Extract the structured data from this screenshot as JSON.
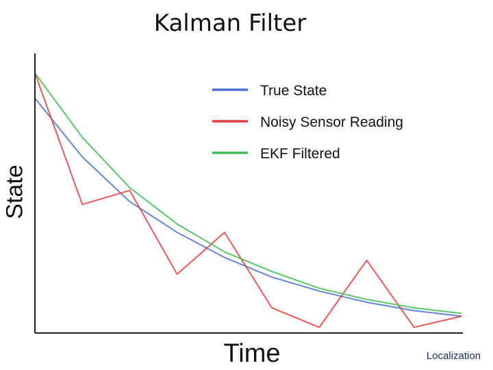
{
  "title": "Kalman Filter",
  "footer": "Localization",
  "chart_data": {
    "type": "line",
    "title": "Kalman Filter",
    "xlabel": "Time",
    "ylabel": "State",
    "grid": false,
    "legend": "top-right",
    "xlim": [
      0,
      9
    ],
    "ylim": [
      0,
      100
    ],
    "x": [
      0,
      1,
      2,
      3,
      4,
      5,
      6,
      7,
      8,
      9
    ],
    "series": [
      {
        "name": "True State",
        "color": "#4a6fd1",
        "values": [
          84,
          63,
          47,
          36,
          27,
          20,
          15,
          11,
          8,
          6
        ]
      },
      {
        "name": "Noisy Sensor Reading",
        "color": "#e83b3b",
        "values": [
          93,
          46,
          51,
          21,
          36,
          9,
          2,
          26,
          2,
          6
        ]
      },
      {
        "name": "EKF Filtered",
        "color": "#3dbb4f",
        "values": [
          93,
          70,
          52,
          39,
          29,
          22,
          16,
          12,
          9,
          7
        ]
      }
    ]
  }
}
